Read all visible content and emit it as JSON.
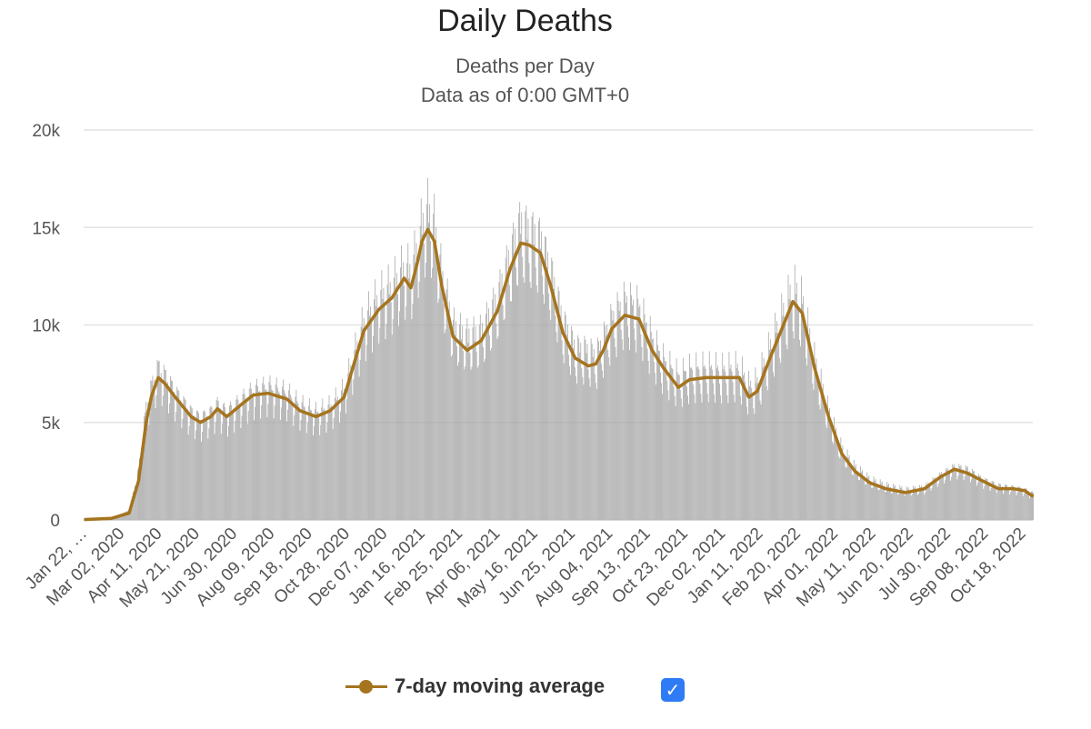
{
  "title": "Daily Deaths",
  "subtitle": "Deaths per Day",
  "subtitle2": "Data as of 0:00 GMT+0",
  "legend": {
    "label": "7-day moving average",
    "checked": true
  },
  "colors": {
    "bars": "#a9a9a9",
    "line": "#a5741e",
    "grid": "#e3e3e3",
    "checkbox": "#2f7bf5"
  },
  "chart_data": {
    "type": "bar",
    "ylim": [
      0,
      20000
    ],
    "y_ticks": [
      0,
      5000,
      10000,
      15000,
      20000
    ],
    "y_tick_labels": [
      "0",
      "5k",
      "10k",
      "15k",
      "20k"
    ],
    "x_tick_labels": [
      "Jan 22, …",
      "Mar 02, 2020",
      "Apr 11, 2020",
      "May 21, 2020",
      "Jun 30, 2020",
      "Aug 09, 2020",
      "Sep 18, 2020",
      "Oct 28, 2020",
      "Dec 07, 2020",
      "Jan 16, 2021",
      "Feb 25, 2021",
      "Apr 06, 2021",
      "May 16, 2021",
      "Jun 25, 2021",
      "Aug 04, 2021",
      "Sep 13, 2021",
      "Oct 23, 2021",
      "Dec 02, 2021",
      "Jan 11, 2022",
      "Feb 20, 2022",
      "Apr 01, 2022",
      "May 11, 2022",
      "Jun 20, 2022",
      "Jul 30, 2022",
      "Sep 08, 2022",
      "Oct 18, 2022"
    ],
    "x_start": "2020-01-22",
    "days": 1011,
    "grid": true,
    "legend_position": "bottom",
    "series": [
      {
        "type": "bar",
        "points": [
          [
            "2020-01-22",
            20
          ],
          [
            "2020-02-20",
            100
          ],
          [
            "2020-03-10",
            500
          ],
          [
            "2020-03-20",
            2500
          ],
          [
            "2020-03-28",
            5500
          ],
          [
            "2020-04-03",
            6600
          ],
          [
            "2020-04-10",
            7500
          ],
          [
            "2020-04-17",
            7100
          ],
          [
            "2020-04-28",
            6300
          ],
          [
            "2020-05-15",
            5300
          ],
          [
            "2020-05-25",
            5000
          ],
          [
            "2020-06-05",
            5300
          ],
          [
            "2020-06-12",
            5700
          ],
          [
            "2020-06-22",
            5300
          ],
          [
            "2020-07-07",
            5900
          ],
          [
            "2020-07-20",
            6400
          ],
          [
            "2020-08-05",
            6600
          ],
          [
            "2020-08-25",
            6300
          ],
          [
            "2020-09-08",
            5700
          ],
          [
            "2020-09-25",
            5300
          ],
          [
            "2020-10-10",
            5600
          ],
          [
            "2020-10-25",
            6400
          ],
          [
            "2020-11-05",
            8200
          ],
          [
            "2020-11-15",
            9800
          ],
          [
            "2020-12-01",
            11000
          ],
          [
            "2020-12-15",
            11500
          ],
          [
            "2020-12-28",
            12400
          ],
          [
            "2021-01-04",
            12200
          ],
          [
            "2021-01-10",
            13200
          ],
          [
            "2021-01-16",
            14500
          ],
          [
            "2021-01-22",
            15200
          ],
          [
            "2021-01-29",
            14500
          ],
          [
            "2021-02-06",
            12000
          ],
          [
            "2021-02-18",
            9500
          ],
          [
            "2021-03-05",
            9000
          ],
          [
            "2021-03-20",
            9200
          ],
          [
            "2021-04-06",
            10800
          ],
          [
            "2021-04-20",
            13000
          ],
          [
            "2021-05-01",
            14500
          ],
          [
            "2021-05-10",
            14100
          ],
          [
            "2021-05-22",
            13700
          ],
          [
            "2021-06-02",
            12200
          ],
          [
            "2021-06-15",
            9700
          ],
          [
            "2021-06-28",
            8400
          ],
          [
            "2021-07-12",
            8300
          ],
          [
            "2021-07-20",
            8000
          ],
          [
            "2021-07-28",
            8800
          ],
          [
            "2021-08-06",
            9800
          ],
          [
            "2021-08-20",
            10700
          ],
          [
            "2021-09-04",
            10400
          ],
          [
            "2021-09-18",
            8800
          ],
          [
            "2021-09-30",
            7800
          ],
          [
            "2021-10-16",
            7000
          ],
          [
            "2021-10-28",
            7300
          ],
          [
            "2021-11-15",
            7400
          ],
          [
            "2021-12-02",
            7300
          ],
          [
            "2021-12-20",
            7400
          ],
          [
            "2021-12-30",
            6500
          ],
          [
            "2022-01-08",
            6700
          ],
          [
            "2022-01-20",
            8200
          ],
          [
            "2022-02-04",
            10000
          ],
          [
            "2022-02-15",
            11300
          ],
          [
            "2022-02-25",
            10600
          ],
          [
            "2022-03-10",
            7800
          ],
          [
            "2022-03-25",
            5300
          ],
          [
            "2022-04-08",
            3500
          ],
          [
            "2022-04-22",
            2600
          ],
          [
            "2022-05-08",
            2000
          ],
          [
            "2022-05-25",
            1700
          ],
          [
            "2022-06-15",
            1500
          ],
          [
            "2022-07-05",
            1600
          ],
          [
            "2022-07-22",
            2200
          ],
          [
            "2022-08-06",
            2600
          ],
          [
            "2022-08-20",
            2500
          ],
          [
            "2022-09-05",
            2000
          ],
          [
            "2022-09-22",
            1700
          ],
          [
            "2022-10-08",
            1600
          ],
          [
            "2022-10-20",
            1500
          ],
          [
            "2022-10-29",
            1300
          ]
        ]
      },
      {
        "type": "line",
        "name": "7-day moving average",
        "points": [
          [
            "2020-01-22",
            20
          ],
          [
            "2020-02-20",
            80
          ],
          [
            "2020-03-10",
            350
          ],
          [
            "2020-03-20",
            2000
          ],
          [
            "2020-03-28",
            5000
          ],
          [
            "2020-04-03",
            6400
          ],
          [
            "2020-04-10",
            7300
          ],
          [
            "2020-04-17",
            7000
          ],
          [
            "2020-04-28",
            6300
          ],
          [
            "2020-05-15",
            5300
          ],
          [
            "2020-05-25",
            5000
          ],
          [
            "2020-06-05",
            5300
          ],
          [
            "2020-06-12",
            5700
          ],
          [
            "2020-06-22",
            5300
          ],
          [
            "2020-07-07",
            5900
          ],
          [
            "2020-07-20",
            6400
          ],
          [
            "2020-08-05",
            6500
          ],
          [
            "2020-08-25",
            6200
          ],
          [
            "2020-09-08",
            5600
          ],
          [
            "2020-09-25",
            5300
          ],
          [
            "2020-10-10",
            5600
          ],
          [
            "2020-10-25",
            6300
          ],
          [
            "2020-11-05",
            8100
          ],
          [
            "2020-11-15",
            9700
          ],
          [
            "2020-12-01",
            10800
          ],
          [
            "2020-12-15",
            11400
          ],
          [
            "2020-12-28",
            12400
          ],
          [
            "2021-01-04",
            11900
          ],
          [
            "2021-01-10",
            13000
          ],
          [
            "2021-01-16",
            14300
          ],
          [
            "2021-01-22",
            14900
          ],
          [
            "2021-01-29",
            14300
          ],
          [
            "2021-02-06",
            12000
          ],
          [
            "2021-02-18",
            9400
          ],
          [
            "2021-03-05",
            8700
          ],
          [
            "2021-03-20",
            9200
          ],
          [
            "2021-04-06",
            10700
          ],
          [
            "2021-04-20",
            12900
          ],
          [
            "2021-05-01",
            14200
          ],
          [
            "2021-05-10",
            14100
          ],
          [
            "2021-05-22",
            13700
          ],
          [
            "2021-06-02",
            12000
          ],
          [
            "2021-06-15",
            9600
          ],
          [
            "2021-06-28",
            8300
          ],
          [
            "2021-07-12",
            7900
          ],
          [
            "2021-07-20",
            8000
          ],
          [
            "2021-07-28",
            8700
          ],
          [
            "2021-08-06",
            9800
          ],
          [
            "2021-08-20",
            10500
          ],
          [
            "2021-09-04",
            10300
          ],
          [
            "2021-09-18",
            8700
          ],
          [
            "2021-09-30",
            7800
          ],
          [
            "2021-10-16",
            6800
          ],
          [
            "2021-10-28",
            7200
          ],
          [
            "2021-11-15",
            7300
          ],
          [
            "2021-12-02",
            7300
          ],
          [
            "2021-12-20",
            7300
          ],
          [
            "2021-12-30",
            6300
          ],
          [
            "2022-01-08",
            6600
          ],
          [
            "2022-01-20",
            8100
          ],
          [
            "2022-02-04",
            9900
          ],
          [
            "2022-02-15",
            11200
          ],
          [
            "2022-02-25",
            10600
          ],
          [
            "2022-03-10",
            7800
          ],
          [
            "2022-03-25",
            5300
          ],
          [
            "2022-04-08",
            3400
          ],
          [
            "2022-04-22",
            2500
          ],
          [
            "2022-05-08",
            1900
          ],
          [
            "2022-05-25",
            1600
          ],
          [
            "2022-06-15",
            1400
          ],
          [
            "2022-07-05",
            1600
          ],
          [
            "2022-07-22",
            2200
          ],
          [
            "2022-08-06",
            2600
          ],
          [
            "2022-08-20",
            2400
          ],
          [
            "2022-09-05",
            2000
          ],
          [
            "2022-09-22",
            1600
          ],
          [
            "2022-10-08",
            1600
          ],
          [
            "2022-10-20",
            1500
          ],
          [
            "2022-10-29",
            1200
          ]
        ]
      }
    ]
  }
}
